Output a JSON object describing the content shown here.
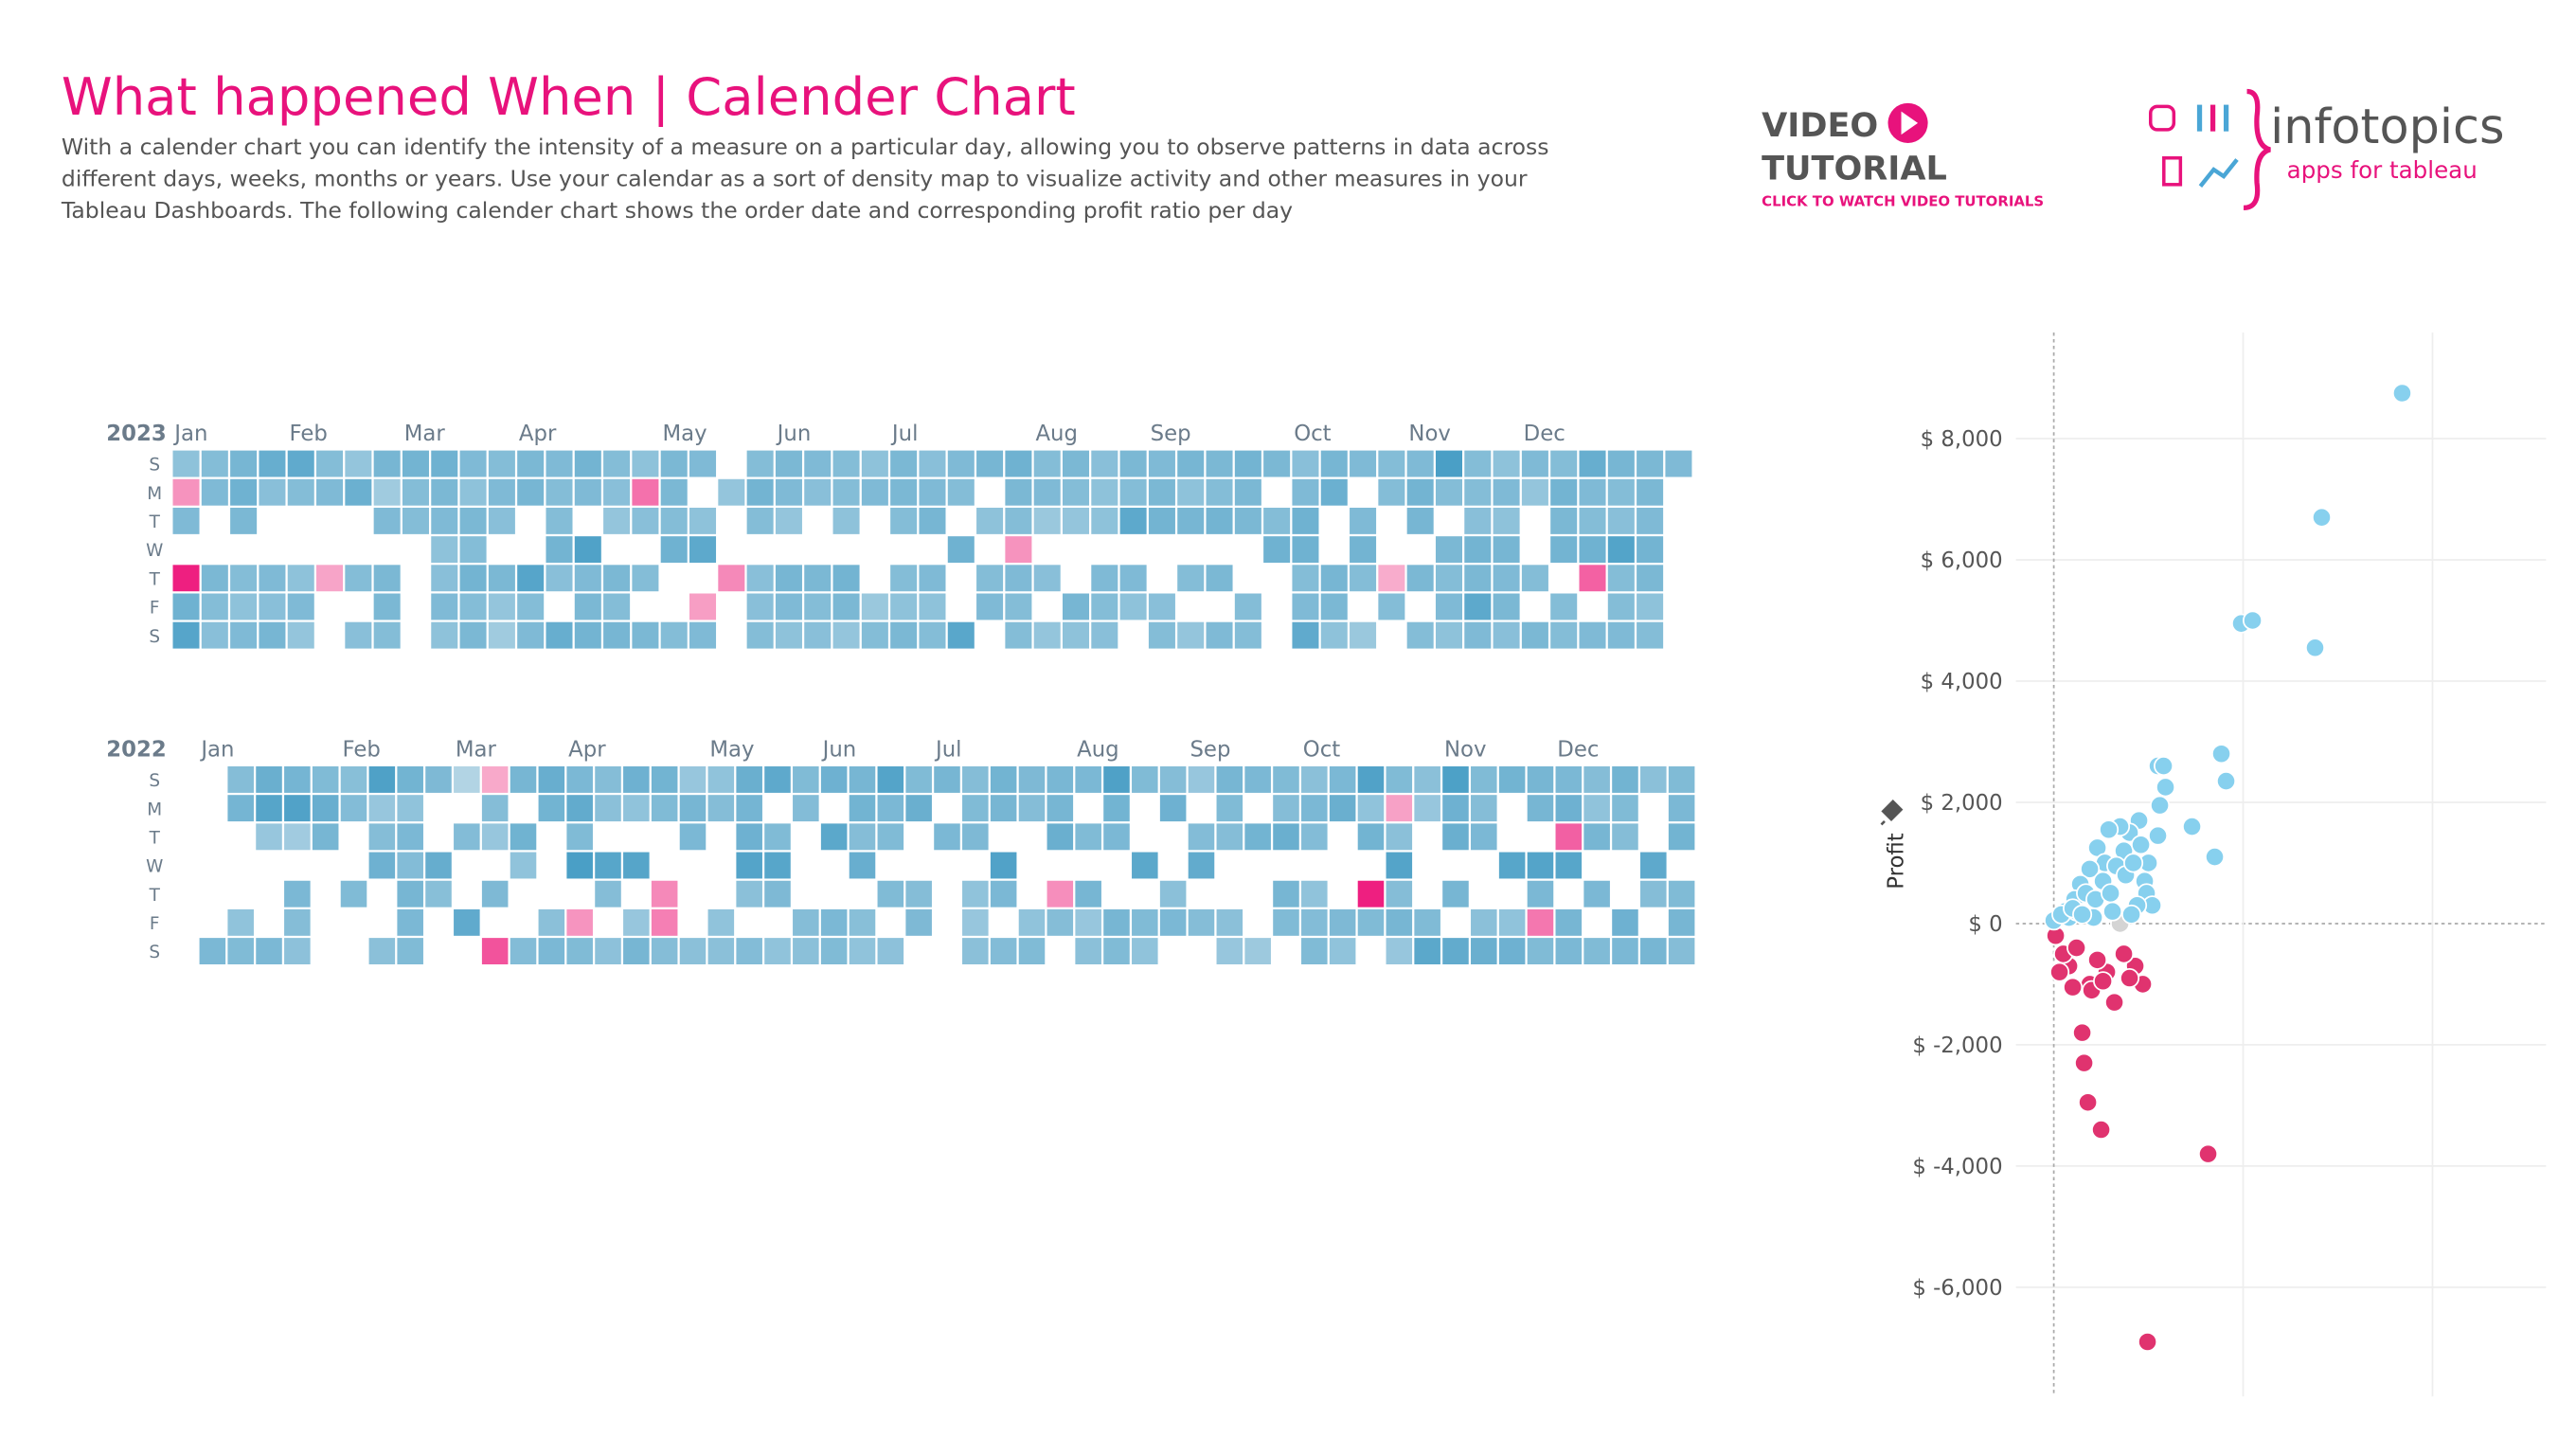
{
  "header": {
    "title": "What happened When | Calender Chart",
    "description_lines": [
      "With a calender chart you can identify the intensity of a measure on a particular day, allowing you to observe patterns in data across",
      "different days, weeks, months or years. Use your calendar as a sort of density map to visualize activity and other measures in your",
      "Tableau Dashboards. The following calender chart shows the order date and corresponding profit ratio per day"
    ]
  },
  "video_tutorial": {
    "line1": "VIDEO",
    "line2": "TUTORIAL",
    "caption": "CLICK TO WATCH VIDEO TUTORIALS"
  },
  "brand": {
    "name": "infotopics",
    "tagline": "apps for tableau"
  },
  "chart_data": [
    {
      "type": "calendar",
      "year": 2023,
      "months": [
        "Jan",
        "Feb",
        "Mar",
        "Apr",
        "May",
        "Jun",
        "Jul",
        "Aug",
        "Sep",
        "Oct",
        "Nov",
        "Dec"
      ],
      "day_labels": [
        "S",
        "M",
        "T",
        "W",
        "T",
        "F",
        "S"
      ],
      "positive_color": "#4a9fc6",
      "negative_color": "#ee1f80",
      "values": [
        16,
        -14,
        22,
        null,
        -95,
        30,
        44,
        20,
        22,
        null,
        null,
        24,
        20,
        18,
        26,
        30,
        24,
        null,
        20,
        16,
        22,
        34,
        18,
        null,
        null,
        22,
        18,
        26,
        38,
        20,
        null,
        null,
        16,
        22,
        14,
        20,
        22,
        null,
        null,
        -8,
        null,
        null,
        14,
        32,
        null,
        null,
        20,
        null,
        18,
        26,
        10,
        22,
        null,
        24,
        24,
        20,
        28,
        20,
        20,
        null,
        null,
        null,
        null,
        30,
        24,
        22,
        16,
        18,
        22,
        16,
        22,
        16,
        24,
        20,
        28,
        20,
        24,
        20,
        22,
        18,
        null,
        24,
        14,
        10,
        24,
        26,
        null,
        null,
        44,
        20,
        22,
        22,
        20,
        20,
        28,
        18,
        null,
        34,
        28,
        22,
        null,
        48,
        22,
        24,
        28,
        20,
        18,
        14,
        null,
        24,
        20,
        26,
        16,
        -30,
        18,
        null,
        20,
        null,
        24,
        24,
        24,
        20,
        30,
        null,
        null,
        20,
        22,
        null,
        16,
        40,
        null,
        -10,
        22,
        null,
        14,
        null,
        null,
        -18,
        null,
        null,
        20,
        28,
        20,
        null,
        18,
        18,
        20,
        24,
        22,
        14,
        null,
        26,
        22,
        16,
        22,
        18,
        null,
        null,
        24,
        20,
        18,
        20,
        20,
        16,
        null,
        28,
        24,
        14,
        16,
        22,
        null,
        null,
        null,
        12,
        20,
        24,
        24,
        20,
        null,
        20,
        16,
        24,
        18,
        22,
        26,
        null,
        22,
        16,
        20,
        22,
        20,
        null,
        30,
        null,
        null,
        42,
        26,
        null,
        16,
        null,
        20,
        22,
        null,
        30,
        24,
        20,
        -14,
        22,
        20,
        20,
        20,
        22,
        12,
        null,
        18,
        null,
        14,
        24,
        20,
        14,
        null,
        null,
        26,
        16,
        18,
        16,
        16,
        null,
        22,
        20,
        18,
        24,
        20,
        40,
        null,
        22,
        16,
        null,
        22,
        24,
        28,
        null,
        null,
        18,
        20,
        26,
        16,
        26,
        null,
        20,
        null,
        14,
        24,
        20,
        28,
        null,
        24,
        null,
        22,
        28,
        24,
        24,
        null,
        null,
        20,
        20,
        24,
        null,
        20,
        30,
        null,
        null,
        null,
        18,
        22,
        30,
        30,
        20,
        22,
        38,
        26,
        32,
        null,
        null,
        26,
        24,
        16,
        22,
        null,
        22,
        28,
        20,
        null,
        12,
        20,
        20,
        null,
        null,
        -6,
        20,
        null,
        22,
        28,
        26,
        null,
        24,
        null,
        20,
        52,
        20,
        null,
        24,
        20,
        22,
        16,
        20,
        20,
        18,
        28,
        24,
        40,
        22,
        16,
        22,
        16,
        26,
        22,
        24,
        18,
        22,
        14,
        null,
        null,
        20,
        null,
        24,
        20,
        28,
        24,
        28,
        null,
        20,
        20,
        34,
        22,
        20,
        30,
        -40,
        null,
        22,
        26,
        20,
        18,
        46,
        20,
        20,
        22,
        24,
        24,
        22,
        28,
        24,
        16,
        20,
        22
      ]
    },
    {
      "type": "calendar",
      "year": 2022,
      "months": [
        "Jan",
        "Feb",
        "Mar",
        "Apr",
        "May",
        "Jun",
        "Jul",
        "Aug",
        "Sep",
        "Oct",
        "Nov",
        "Dec"
      ],
      "day_labels": [
        "S",
        "M",
        "T",
        "W",
        "T",
        "F",
        "S"
      ],
      "positive_color": "#4a9fc6",
      "negative_color": "#ee1f80",
      "values": [
        22,
        18,
        25,
        null,
        null,
        null,
        14,
        20,
        30,
        41,
        12,
        null,
        null,
        null,
        22,
        25,
        44,
        9,
        null,
        22,
        18,
        15,
        20,
        31,
        24,
        null,
        null,
        null,
        null,
        17,
        19,
        null,
        null,
        20,
        null,
        null,
        45,
        12,
        18,
        28,
        null,
        null,
        16,
        26,
        14,
        22,
        19,
        24,
        22,
        20,
        21,
        null,
        null,
        32,
        17,
        null,
        null,
        5,
        null,
        19,
        null,
        null,
        35,
        null,
        -3,
        18,
        12,
        null,
        21,
        null,
        -22,
        24,
        null,
        27,
        14,
        null,
        null,
        19,
        31,
        26,
        null,
        null,
        null,
        16,
        22,
        22,
        34,
        20,
        48,
        null,
        -6,
        20,
        18,
        16,
        null,
        40,
        18,
        null,
        15,
        28,
        14,
        null,
        41,
        null,
        12,
        24,
        26,
        20,
        null,
        null,
        -8,
        -10,
        18,
        12,
        24,
        22,
        null,
        null,
        null,
        16,
        14,
        18,
        null,
        null,
        null,
        14,
        16,
        30,
        25,
        28,
        42,
        16,
        null,
        19,
        36,
        null,
        20,
        40,
        21,
        null,
        14,
        20,
        19,
        null,
        null,
        null,
        18,
        16,
        28,
        null,
        38,
        null,
        null,
        22,
        20,
        24,
        26,
        18,
        31,
        null,
        17,
        14,
        42,
        22,
        20,
        null,
        20,
        null,
        15,
        20,
        30,
        null,
        null,
        18,
        21,
        null,
        24,
        null,
        22,
        null,
        null,
        null,
        null,
        18,
        20,
        21,
        null,
        14,
        12,
        16,
        26,
        24,
        null,
        44,
        22,
        null,
        19,
        21,
        18,
        null,
        null,
        null,
        14,
        20,
        23,
        24,
        30,
        null,
        -7,
        18,
        null,
        22,
        null,
        20,
        null,
        24,
        12,
        16,
        45,
        26,
        22,
        null,
        null,
        24,
        20,
        20,
        null,
        null,
        38,
        null,
        20,
        14,
        18,
        28,
        null,
        null,
        16,
        22,
        null,
        12,
        null,
        19,
        34,
        null,
        18,
        null,
        24,
        20,
        18,
        null,
        null,
        16,
        12,
        22,
        null,
        26,
        null,
        null,
        null,
        10,
        20,
        18,
        30,
        null,
        24,
        20,
        null,
        16,
        22,
        19,
        null,
        14,
        19,
        20,
        22,
        30,
        null,
        null,
        null,
        21,
        14,
        44,
        14,
        26,
        null,
        -42,
        20,
        null,
        20,
        -4,
        16,
        42,
        18,
        24,
        12,
        16,
        12,
        null,
        null,
        null,
        20,
        38,
        46,
        28,
        30,
        null,
        24,
        null,
        34,
        20,
        18,
        22,
        null,
        null,
        16,
        30,
        26,
        null,
        null,
        40,
        null,
        14,
        28,
        24,
        24,
        null,
        42,
        22,
        -12,
        20,
        22,
        28,
        -18,
        40,
        null,
        24,
        22,
        18,
        14,
        24,
        null,
        22,
        null,
        20,
        26,
        20,
        18,
        null,
        null,
        28,
        22,
        16,
        null,
        null,
        36,
        18,
        null,
        24,
        20,
        22,
        26,
        null,
        20,
        24,
        18
      ]
    },
    {
      "type": "scatter",
      "y_label": "Profit",
      "positive_color": "#87d0ee",
      "negative_color": "#e0336f",
      "zero_color": "#d4d4d4",
      "xlim": [
        -2000,
        26000
      ],
      "xticks": [
        0,
        10000,
        20000
      ],
      "show_x_tick_labels": false,
      "ylim": [
        -7800,
        9750
      ],
      "yticks": [
        {
          "value": -6000,
          "label": "$ -6,000"
        },
        {
          "value": -4000,
          "label": "$ -4,000"
        },
        {
          "value": -2000,
          "label": "$ -2,000"
        },
        {
          "value": 0,
          "label": "$ 0"
        },
        {
          "value": 2000,
          "label": "$ 2,000"
        },
        {
          "value": 4000,
          "label": "$ 4,000"
        },
        {
          "value": 6000,
          "label": "$ 6,000"
        },
        {
          "value": 8000,
          "label": "$ 8,000"
        }
      ],
      "x": [
        18400,
        14150,
        9900,
        10500,
        13800,
        8850,
        9100,
        7300,
        8500,
        5500,
        5800,
        5900,
        5600,
        5500,
        8150,
        4950,
        1500,
        1600,
        1800,
        2500,
        4700,
        4300,
        3700,
        4000,
        3200,
        2800,
        1900,
        2000,
        1000,
        800,
        500,
        300,
        100,
        2300,
        2600,
        1200,
        3500,
        4500,
        4000,
        3500,
        2900,
        3700,
        4600,
        5000,
        2300,
        2700,
        3300,
        1900,
        2600,
        1400,
        3800,
        4200,
        4800,
        1100,
        1700,
        2200,
        3000,
        4900,
        5200,
        4400,
        600,
        800,
        1200,
        0,
        2100,
        3100,
        4100,
        400,
        1000,
        1500
      ],
      "y": [
        8750,
        6700,
        4950,
        5000,
        4550,
        2800,
        2350,
        1600,
        1100,
        2600,
        2600,
        2250,
        1950,
        1450,
        -3800,
        -6900,
        -1800,
        -2300,
        -2950,
        -3400,
        -1000,
        -700,
        -500,
        -900,
        -1300,
        -800,
        -1000,
        -1100,
        -1050,
        -700,
        -500,
        -800,
        -200,
        -600,
        -950,
        -400,
        0,
        1700,
        1500,
        1600,
        1550,
        1200,
        1300,
        1000,
        1250,
        1000,
        950,
        900,
        700,
        650,
        800,
        1000,
        700,
        400,
        500,
        400,
        500,
        500,
        300,
        300,
        200,
        100,
        200,
        50,
        100,
        200,
        150,
        150,
        250,
        150
      ]
    }
  ]
}
